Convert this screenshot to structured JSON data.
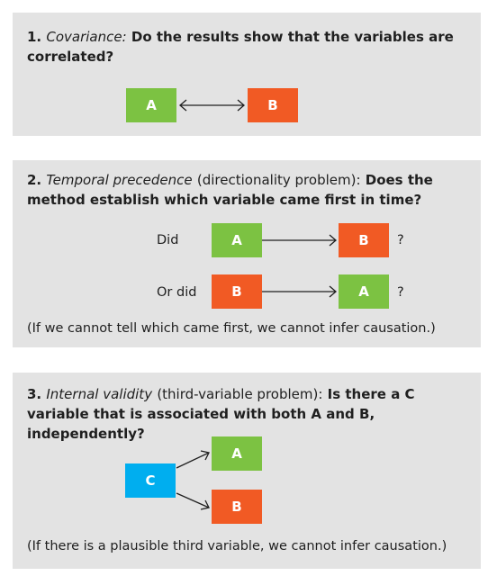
{
  "panel1": {
    "number": "1.",
    "term": "Covariance:",
    "text": "Do the results show that the variables are correlated?",
    "box_a": "A",
    "box_b": "B"
  },
  "panel2": {
    "number": "2.",
    "term": "Temporal precedence",
    "qualifier": "(directionality problem):",
    "text": "Does the method establish which variable came first in time?",
    "row1_label": "Did",
    "row1_from": "A",
    "row1_to": "B",
    "row1_q": "?",
    "row2_label": "Or did",
    "row2_from": "B",
    "row2_to": "A",
    "row2_q": "?",
    "note": "(If we cannot tell which came first, we cannot infer causation.)"
  },
  "panel3": {
    "number": "3.",
    "term": "Internal validity",
    "qualifier": "(third-variable problem):",
    "text": "Is there a C variable that is associated with both A and B, independently?",
    "box_c": "C",
    "box_a": "A",
    "box_b": "B",
    "note": "(If there is a plausible third variable, we cannot infer causation.)"
  },
  "colors": {
    "green": "#7cc242",
    "red": "#f15a24",
    "blue": "#00aeef",
    "panel": "#e3e3e3"
  }
}
